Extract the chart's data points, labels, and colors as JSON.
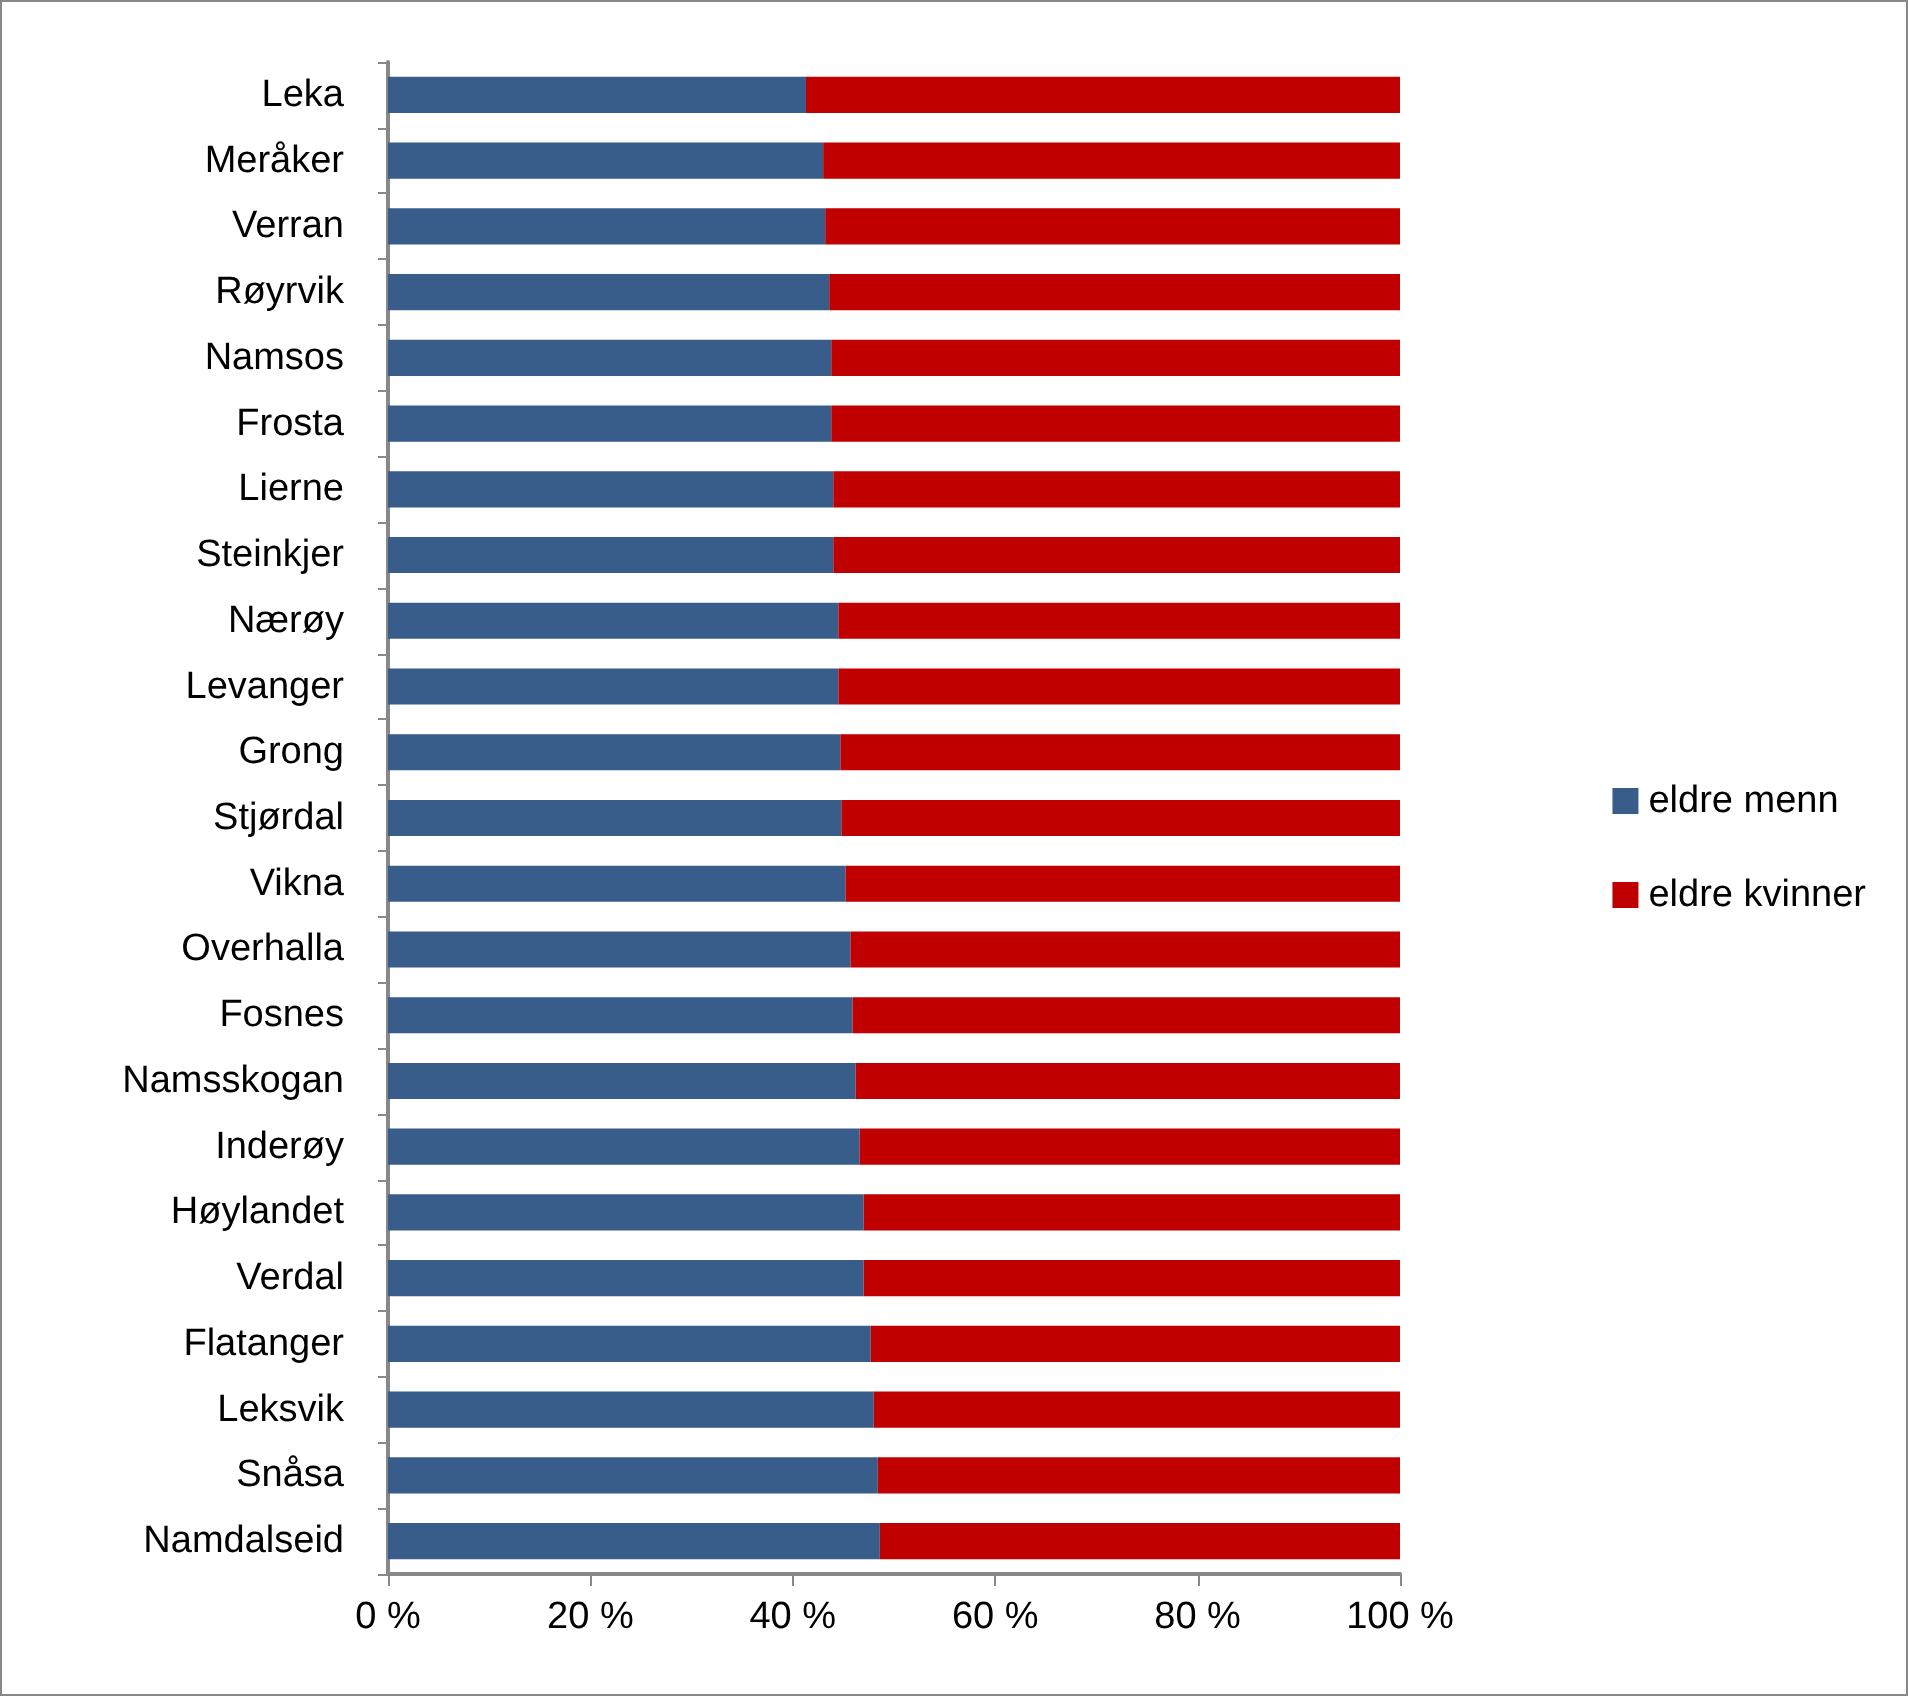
{
  "chart_data": {
    "type": "bar",
    "orientation": "horizontal",
    "stacked": true,
    "categories": [
      "Leka",
      "Meråker",
      "Verran",
      "Røyrvik",
      "Namsos",
      "Frosta",
      "Lierne",
      "Steinkjer",
      "Nærøy",
      "Levanger",
      "Grong",
      "Stjørdal",
      "Vikna",
      "Overhalla",
      "Fosnes",
      "Namsskogan",
      "Inderøy",
      "Høylandet",
      "Verdal",
      "Flatanger",
      "Leksvik",
      "Snåsa",
      "Namdalseid"
    ],
    "series": [
      {
        "name": "eldre menn",
        "color": "#385d8a",
        "values": [
          41.3,
          43.0,
          43.2,
          43.6,
          43.8,
          43.8,
          44.0,
          44.0,
          44.5,
          44.5,
          44.7,
          44.8,
          45.2,
          45.7,
          45.9,
          46.2,
          46.6,
          47.0,
          47.0,
          47.7,
          48.0,
          48.4,
          48.6
        ]
      },
      {
        "name": "eldre kvinner",
        "color": "#c00000",
        "values": [
          58.7,
          57.0,
          56.8,
          56.4,
          56.2,
          56.2,
          56.0,
          56.0,
          55.5,
          55.5,
          55.3,
          55.2,
          54.8,
          54.3,
          54.1,
          53.8,
          53.4,
          53.0,
          53.0,
          52.3,
          52.0,
          51.6,
          51.4
        ]
      }
    ],
    "xlim": [
      0,
      100
    ],
    "xticks": [
      {
        "value": 0,
        "label": "0 %"
      },
      {
        "value": 20,
        "label": "20 %"
      },
      {
        "value": 40,
        "label": "40 %"
      },
      {
        "value": 60,
        "label": "60 %"
      },
      {
        "value": 80,
        "label": "80 %"
      },
      {
        "value": 100,
        "label": "100 %"
      }
    ],
    "grid": false,
    "legend": "right"
  }
}
